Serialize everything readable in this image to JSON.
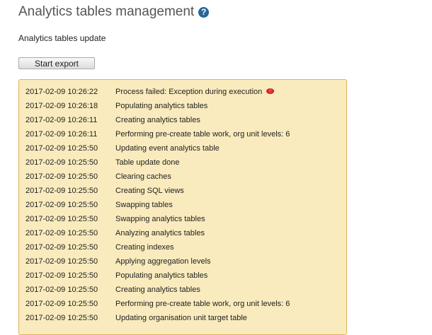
{
  "header": {
    "title": "Analytics tables management",
    "help_icon": "question-circle-icon"
  },
  "subtitle": "Analytics tables update",
  "start_export_label": "Start export",
  "colors": {
    "log_bg": "#f9ebbd",
    "log_border": "#e0b35a",
    "help": "#276696",
    "error": "#cc0000"
  },
  "log": [
    {
      "time": "2017-02-09 10:26:22",
      "message": "Process failed: Exception during execution",
      "error": true
    },
    {
      "time": "2017-02-09 10:26:18",
      "message": "Populating analytics tables"
    },
    {
      "time": "2017-02-09 10:26:11",
      "message": "Creating analytics tables"
    },
    {
      "time": "2017-02-09 10:26:11",
      "message": "Performing pre-create table work, org unit levels: 6"
    },
    {
      "time": "2017-02-09 10:25:50",
      "message": "Updating event analytics table"
    },
    {
      "time": "2017-02-09 10:25:50",
      "message": "Table update done"
    },
    {
      "time": "2017-02-09 10:25:50",
      "message": "Clearing caches"
    },
    {
      "time": "2017-02-09 10:25:50",
      "message": "Creating SQL views"
    },
    {
      "time": "2017-02-09 10:25:50",
      "message": "Swapping tables"
    },
    {
      "time": "2017-02-09 10:25:50",
      "message": "Swapping analytics tables"
    },
    {
      "time": "2017-02-09 10:25:50",
      "message": "Analyzing analytics tables"
    },
    {
      "time": "2017-02-09 10:25:50",
      "message": "Creating indexes"
    },
    {
      "time": "2017-02-09 10:25:50",
      "message": "Applying aggregation levels"
    },
    {
      "time": "2017-02-09 10:25:50",
      "message": "Populating analytics tables"
    },
    {
      "time": "2017-02-09 10:25:50",
      "message": "Creating analytics tables"
    },
    {
      "time": "2017-02-09 10:25:50",
      "message": "Performing pre-create table work, org unit levels: 6"
    },
    {
      "time": "2017-02-09 10:25:50",
      "message": "Updating organisation unit target table"
    }
  ]
}
